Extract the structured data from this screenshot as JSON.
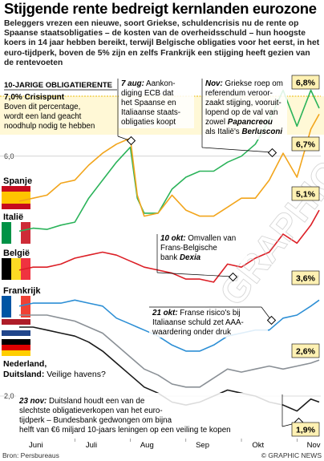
{
  "header": {
    "title": "Stijgende rente bedreigt kernlanden eurozone",
    "intro": "Beleggers vrezen een nieuwe, soort Griekse, schuldencrisis nu de rente op Spaanse staatsobligaties – de kosten van de overheidsschuld – hun hoogste koers in 14 jaar hebben bereikt, terwijl Belgische obligaties voor het eerst, in het euro-tijdperk, boven de 5% zijn en zelfs Frankrijk een stijging heeft gezien van de rentevoeten"
  },
  "legend": {
    "title": "10-JARIGE OBLIGATIERENTE",
    "crisis_title": "7,0% Crisispunt",
    "crisis_body": [
      "Boven dit percentage,",
      "wordt een land geacht",
      "noodhulp nodig te hebben"
    ]
  },
  "countries": {
    "spain": "Spanje",
    "italy": "Italië",
    "belgium": "België",
    "france": "Frankrijk",
    "nl_de_1": "Nederland,",
    "nl_de_2": "Duitsland:",
    "nl_de_3": " Veilige havens?"
  },
  "annotations": {
    "aug7": {
      "date": "7 aug:",
      "lines": [
        "Aankon-",
        "diging ECB dat",
        "het Spaanse en",
        "Italiaanse staats-",
        "obligaties koopt"
      ],
      "first_rest": " Aankon-"
    },
    "nov": {
      "date": "Nov:",
      "first_rest": " Griekse roep om",
      "lines": [
        "referendum veroor-",
        "zaakt stijging, vooruit-",
        "lopend op de val van"
      ],
      "zowel_pre": "zowel ",
      "papandreou": "Papancreou",
      "zowel_post": "",
      "als_pre": "als Italië's ",
      "berlusconi": "Berlusconi"
    },
    "oct10": {
      "date": "10 okt:",
      "first_rest": " Omvallen van",
      "line2": "Frans-Belgische",
      "bank_pre": "bank ",
      "dexia": "Dexia"
    },
    "oct21": {
      "date": "21 okt:",
      "first_rest": " Franse risico's bij",
      "lines": [
        "Italiaanse schuld zet AAA-",
        "waardering onder druk"
      ]
    },
    "nov23": {
      "date": "23 nov:",
      "first_rest": " Duitsland houdt een van de",
      "lines": [
        "slechtste obligatieverkopen van het euro-",
        "tijdperk – Bundesbank gedwongen om bijna",
        "helft van €6 miljard 10-jaars leningen op een veiling te kopen"
      ]
    }
  },
  "end_labels": {
    "italy": "6,8%",
    "spain": "6,7%",
    "belgium": "5,1%",
    "france": "3,6%",
    "nl": "2,6%",
    "de": "1,9%"
  },
  "footer": {
    "source": "Bron: Persbureaus",
    "credit": "© GRAPHIC NEWS"
  },
  "watermark": "© GRAPHIC NEWS",
  "colors": {
    "italy": "#2bb35a",
    "spain": "#f2a51c",
    "belgium": "#dc1f26",
    "france": "#2d8fd5",
    "nl": "#8a9096",
    "de": "#1a1a1a",
    "crisis": "#e8b700",
    "highlight": "#fff1b3"
  },
  "chart_data": {
    "type": "line",
    "title": "10-JARIGE OBLIGATIERENTE",
    "x_months": [
      "Juni",
      "Juli",
      "Aug",
      "Sep",
      "Okt",
      "Nov"
    ],
    "x": [
      1,
      1.25,
      1.5,
      1.75,
      2,
      2.25,
      2.5,
      2.75,
      3,
      3.125,
      3.25,
      3.5,
      3.75,
      4,
      4.25,
      4.5,
      4.75,
      5,
      5.25,
      5.5,
      5.75,
      6,
      6.25,
      6.4
    ],
    "ylim": [
      2.0,
      7.0
    ],
    "y_ticks": [
      2.0,
      6.0
    ],
    "crisis_level": 7.0,
    "series": [
      {
        "name": "Italië",
        "values": [
          4.75,
          4.8,
          4.78,
          4.85,
          4.9,
          5.3,
          5.6,
          5.9,
          6.15,
          5.3,
          5.05,
          5.05,
          5.45,
          5.65,
          5.75,
          5.75,
          5.9,
          6.0,
          6.2,
          6.6,
          7.1,
          6.5,
          7.1,
          6.8
        ]
      },
      {
        "name": "Spanje",
        "values": [
          5.25,
          5.3,
          5.35,
          5.55,
          5.6,
          5.85,
          6.05,
          6.2,
          6.3,
          5.35,
          5.0,
          5.05,
          5.35,
          5.1,
          5.0,
          5.0,
          5.15,
          5.3,
          5.3,
          5.6,
          6.05,
          5.65,
          6.45,
          6.7
        ]
      },
      {
        "name": "België",
        "values": [
          4.1,
          4.15,
          4.15,
          4.2,
          4.3,
          4.35,
          4.4,
          4.35,
          4.25,
          4.2,
          4.15,
          4.1,
          4.05,
          3.95,
          3.95,
          3.9,
          4.2,
          4.15,
          4.3,
          4.4,
          4.7,
          4.55,
          4.85,
          5.1
        ]
      },
      {
        "name": "Frankrijk",
        "values": [
          3.5,
          3.55,
          3.55,
          3.55,
          3.6,
          3.55,
          3.5,
          3.3,
          3.2,
          3.15,
          3.1,
          3.0,
          2.85,
          2.75,
          2.75,
          2.85,
          3.0,
          3.05,
          3.1,
          3.1,
          3.3,
          3.35,
          3.5,
          3.6
        ]
      },
      {
        "name": "Nederland",
        "values": [
          3.35,
          3.35,
          3.35,
          3.3,
          3.25,
          3.15,
          3.05,
          2.85,
          2.65,
          2.55,
          2.45,
          2.35,
          2.2,
          2.15,
          2.15,
          2.3,
          2.45,
          2.4,
          2.45,
          2.5,
          2.45,
          2.5,
          2.55,
          2.6
        ]
      },
      {
        "name": "Duitsland",
        "values": [
          3.15,
          3.15,
          3.1,
          3.05,
          3.0,
          2.9,
          2.75,
          2.55,
          2.35,
          2.25,
          2.15,
          2.05,
          1.9,
          1.85,
          1.9,
          2.0,
          2.1,
          2.05,
          2.0,
          1.9,
          1.85,
          1.75,
          1.95,
          1.9
        ]
      }
    ]
  }
}
